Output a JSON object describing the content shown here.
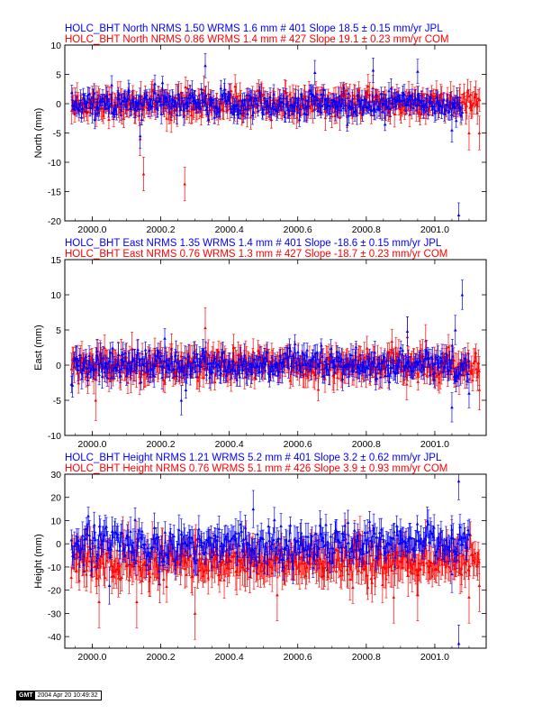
{
  "colors": {
    "jpl": "#0000ff",
    "com": "#ff0000",
    "axis": "#000000"
  },
  "stamp": {
    "logo": "GMT",
    "date": "2004 Apr 20 10:49:32"
  },
  "chart_data": [
    {
      "type": "scatter",
      "title_jpl": "HOLC_BHT North NRMS 1.50 WRMS  1.6 mm # 401 Slope   18.5 ±  0.15 mm/yr JPL",
      "title_com": "HOLC_BHT North NRMS 0.86 WRMS  1.4 mm # 427 Slope   19.1 ±  0.23 mm/yr COM",
      "ylabel": "North (mm)",
      "xlim": [
        1999.92,
        2001.15
      ],
      "ylim": [
        -20,
        10
      ],
      "xticks": [
        "2000.0",
        "2000.2",
        "2000.4",
        "2000.6",
        "2000.8",
        "2001.0"
      ],
      "xtick_values": [
        2000.0,
        2000.2,
        2000.4,
        2000.6,
        2000.8,
        2001.0
      ],
      "yticks": [
        -20,
        -15,
        -10,
        -5,
        0,
        5,
        10
      ],
      "series": [
        {
          "name": "JPL",
          "color": "#0000ff",
          "n": 401,
          "scatter_sigma": 1.6,
          "error_bar": 1.3,
          "start": 1999.94,
          "end": 2001.08,
          "outliers": [
            [
              2000.33,
              6.5
            ],
            [
              2000.65,
              5.3
            ],
            [
              2000.82,
              5.7
            ],
            [
              2000.95,
              5.5
            ],
            [
              2000.14,
              -5.5
            ],
            [
              2001.05,
              -4.5
            ],
            [
              2001.07,
              -19.0
            ]
          ]
        },
        {
          "name": "COM",
          "color": "#ff0000",
          "n": 427,
          "scatter_sigma": 1.4,
          "error_bar": 1.8,
          "start": 1999.94,
          "end": 2001.13,
          "outliers": [
            [
              2000.15,
              -12.0
            ],
            [
              2000.27,
              -13.7
            ],
            [
              2000.14,
              -6.0
            ],
            [
              2001.13,
              -5.0
            ],
            [
              2001.1,
              -5.0
            ]
          ]
        }
      ]
    },
    {
      "type": "scatter",
      "title_jpl": "HOLC_BHT East NRMS 1.35 WRMS  1.4 mm # 401 Slope  -18.6 ±  0.15 mm/yr JPL",
      "title_com": "HOLC_BHT East NRMS 0.76 WRMS  1.3 mm # 427 Slope  -18.7 ±  0.23 mm/yr COM",
      "ylabel": "East (mm)",
      "xlim": [
        1999.92,
        2001.15
      ],
      "ylim": [
        -10,
        15
      ],
      "xticks": [
        "2000.0",
        "2000.2",
        "2000.4",
        "2000.6",
        "2000.8",
        "2001.0"
      ],
      "xtick_values": [
        2000.0,
        2000.2,
        2000.4,
        2000.6,
        2000.8,
        2001.0
      ],
      "yticks": [
        -10,
        -5,
        0,
        5,
        10,
        15
      ],
      "series": [
        {
          "name": "JPL",
          "color": "#0000ff",
          "n": 401,
          "scatter_sigma": 1.4,
          "error_bar": 1.3,
          "start": 1999.94,
          "end": 2001.1,
          "outliers": [
            [
              2001.08,
              10.0
            ],
            [
              2000.92,
              4.8
            ],
            [
              2001.06,
              5.0
            ],
            [
              2001.05,
              -6.0
            ],
            [
              2000.26,
              -5.0
            ],
            [
              2001.1,
              -4.0
            ]
          ]
        },
        {
          "name": "COM",
          "color": "#ff0000",
          "n": 427,
          "scatter_sigma": 1.3,
          "error_bar": 1.8,
          "start": 1999.94,
          "end": 2001.13,
          "outliers": [
            [
              2000.33,
              5.3
            ],
            [
              2000.01,
              -5.0
            ],
            [
              2001.13,
              -3.5
            ],
            [
              2000.92,
              4.0
            ]
          ]
        }
      ]
    },
    {
      "type": "scatter",
      "title_jpl": "HOLC_BHT Height NRMS 1.21 WRMS  5.2 mm # 401 Slope     3.2 ±  0.62 mm/yr JPL",
      "title_com": "HOLC_BHT Height NRMS 0.76 WRMS  5.1 mm # 426 Slope     3.9 ±  0.93 mm/yr COM",
      "ylabel": "Height (mm)",
      "xlim": [
        1999.92,
        2001.15
      ],
      "ylim": [
        -45,
        30
      ],
      "xticks": [
        "2000.0",
        "2000.2",
        "2000.4",
        "2000.6",
        "2000.8",
        "2001.0"
      ],
      "xtick_values": [
        2000.0,
        2000.2,
        2000.4,
        2000.6,
        2000.8,
        2001.0
      ],
      "yticks": [
        -40,
        -30,
        -20,
        -10,
        0,
        10,
        20,
        30
      ],
      "series": [
        {
          "name": "JPL",
          "color": "#0000ff",
          "n": 401,
          "scatter_sigma": 5.2,
          "error_bar": 5.0,
          "offset": 0,
          "start": 1999.94,
          "end": 2001.1,
          "outliers": [
            [
              2001.07,
              27.0
            ],
            [
              2001.07,
              -43.0
            ],
            [
              2000.47,
              15.0
            ],
            [
              2000.05,
              -18.0
            ],
            [
              2001.05,
              -13.0
            ]
          ]
        },
        {
          "name": "COM",
          "color": "#ff0000",
          "n": 426,
          "scatter_sigma": 5.1,
          "error_bar": 7.0,
          "offset": -8,
          "start": 1999.94,
          "end": 2001.13,
          "outliers": [
            [
              2000.02,
              -25.0
            ],
            [
              2000.13,
              -25.0
            ],
            [
              2000.3,
              -30.0
            ],
            [
              2000.88,
              -23.0
            ],
            [
              2000.95,
              -22.0
            ],
            [
              2001.1,
              -23.0
            ],
            [
              2001.13,
              -18.0
            ],
            [
              2000.54,
              -22.0
            ]
          ]
        }
      ]
    }
  ]
}
